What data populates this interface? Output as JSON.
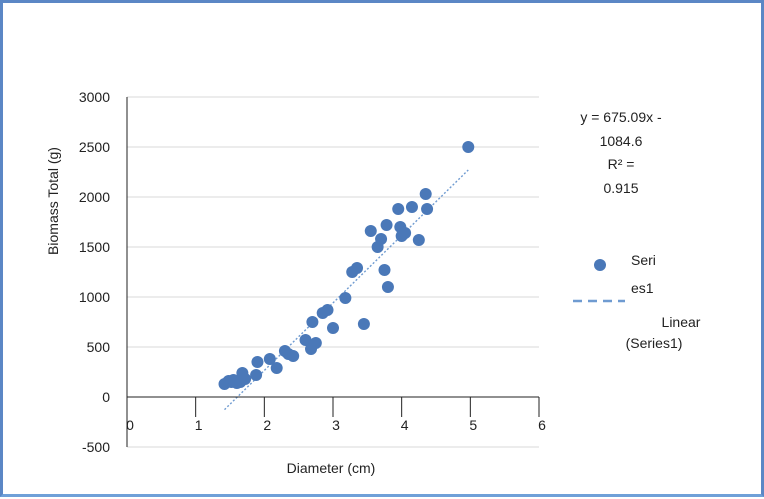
{
  "chart_data": {
    "type": "scatter",
    "title": "",
    "xlabel": "Diameter (cm)",
    "ylabel": "Biomass Total (g)",
    "xlim": [
      0,
      6
    ],
    "ylim": [
      -500,
      3000
    ],
    "x_ticks": [
      0,
      1,
      2,
      3,
      4,
      5,
      6
    ],
    "y_ticks": [
      -500,
      0,
      500,
      1000,
      1500,
      2000,
      2500,
      3000
    ],
    "grid": "horizontal",
    "legend_position": "right",
    "colors": {
      "marker": "#4a78b8",
      "trendline": "#6f9bd1",
      "grid": "#d9d9d9",
      "axis": "#222222",
      "frame": "#5b87c5"
    },
    "series": [
      {
        "name": "Series1",
        "points": [
          [
            1.42,
            130
          ],
          [
            1.48,
            160
          ],
          [
            1.52,
            150
          ],
          [
            1.55,
            170
          ],
          [
            1.6,
            140
          ],
          [
            1.65,
            150
          ],
          [
            1.68,
            240
          ],
          [
            1.72,
            180
          ],
          [
            1.88,
            220
          ],
          [
            1.9,
            350
          ],
          [
            2.08,
            380
          ],
          [
            2.18,
            290
          ],
          [
            2.3,
            460
          ],
          [
            2.35,
            430
          ],
          [
            2.42,
            410
          ],
          [
            2.6,
            570
          ],
          [
            2.68,
            480
          ],
          [
            2.7,
            750
          ],
          [
            2.75,
            540
          ],
          [
            2.85,
            840
          ],
          [
            2.92,
            870
          ],
          [
            3.0,
            690
          ],
          [
            3.18,
            990
          ],
          [
            3.28,
            1250
          ],
          [
            3.35,
            1290
          ],
          [
            3.45,
            730
          ],
          [
            3.55,
            1660
          ],
          [
            3.65,
            1500
          ],
          [
            3.7,
            1580
          ],
          [
            3.75,
            1270
          ],
          [
            3.78,
            1720
          ],
          [
            3.8,
            1100
          ],
          [
            3.95,
            1880
          ],
          [
            3.98,
            1700
          ],
          [
            4.0,
            1610
          ],
          [
            4.05,
            1640
          ],
          [
            4.15,
            1900
          ],
          [
            4.25,
            1570
          ],
          [
            4.35,
            2030
          ],
          [
            4.37,
            1880
          ],
          [
            4.97,
            2500
          ]
        ]
      }
    ],
    "trendline": {
      "name": "Linear (Series1)",
      "type": "linear",
      "slope": 675.09,
      "intercept": -1084.6,
      "x_range": [
        1.42,
        4.97
      ],
      "equation_text": "y = 675.09x - 1084.6",
      "r2_text": "R² = 0.915"
    },
    "legend": [
      {
        "label": "Series1",
        "symbol": "marker"
      },
      {
        "label": "Linear (Series1)",
        "symbol": "dashed-line"
      }
    ]
  },
  "display": {
    "equation_lines": [
      "y = 675.09x -",
      "1084.6",
      "R² =",
      "0.915"
    ],
    "legend_series_lines": [
      "Seri",
      "es1"
    ],
    "legend_linear_lines": [
      "Linear",
      "(Series1)"
    ]
  }
}
